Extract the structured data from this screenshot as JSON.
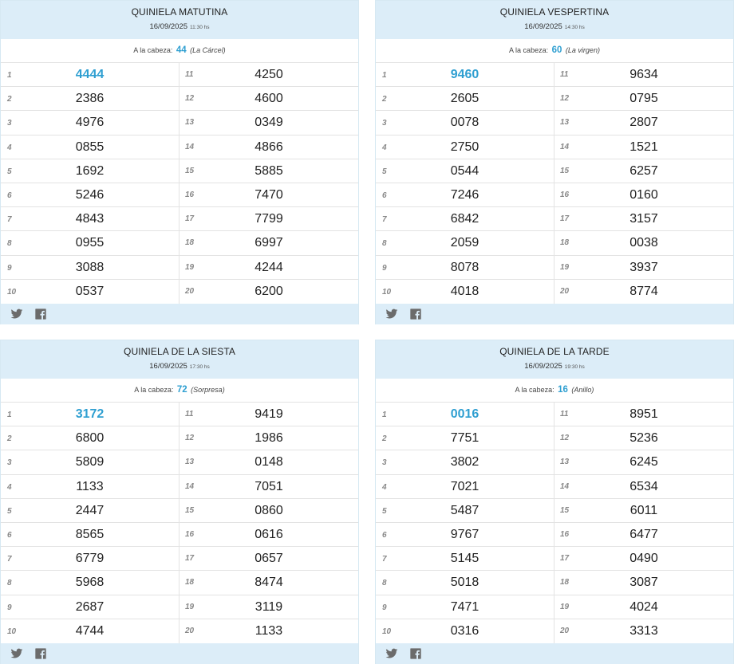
{
  "cards": [
    {
      "title": "QUINIELA MATUTINA",
      "date": "16/09/2025",
      "time": "11:30 hs",
      "cabeza_label": "A la cabeza:",
      "cabeza_number": "44",
      "cabeza_name": "(La Cárcel)",
      "left": [
        {
          "pos": "1",
          "num": "4444"
        },
        {
          "pos": "2",
          "num": "2386"
        },
        {
          "pos": "3",
          "num": "4976"
        },
        {
          "pos": "4",
          "num": "0855"
        },
        {
          "pos": "5",
          "num": "1692"
        },
        {
          "pos": "6",
          "num": "5246"
        },
        {
          "pos": "7",
          "num": "4843"
        },
        {
          "pos": "8",
          "num": "0955"
        },
        {
          "pos": "9",
          "num": "3088"
        },
        {
          "pos": "10",
          "num": "0537"
        }
      ],
      "right": [
        {
          "pos": "11",
          "num": "4250"
        },
        {
          "pos": "12",
          "num": "4600"
        },
        {
          "pos": "13",
          "num": "0349"
        },
        {
          "pos": "14",
          "num": "4866"
        },
        {
          "pos": "15",
          "num": "5885"
        },
        {
          "pos": "16",
          "num": "7470"
        },
        {
          "pos": "17",
          "num": "7799"
        },
        {
          "pos": "18",
          "num": "6997"
        },
        {
          "pos": "19",
          "num": "4244"
        },
        {
          "pos": "20",
          "num": "6200"
        }
      ]
    },
    {
      "title": "QUINIELA VESPERTINA",
      "date": "16/09/2025",
      "time": "14:30 hs",
      "cabeza_label": "A la cabeza:",
      "cabeza_number": "60",
      "cabeza_name": "(La virgen)",
      "left": [
        {
          "pos": "1",
          "num": "9460"
        },
        {
          "pos": "2",
          "num": "2605"
        },
        {
          "pos": "3",
          "num": "0078"
        },
        {
          "pos": "4",
          "num": "2750"
        },
        {
          "pos": "5",
          "num": "0544"
        },
        {
          "pos": "6",
          "num": "7246"
        },
        {
          "pos": "7",
          "num": "6842"
        },
        {
          "pos": "8",
          "num": "2059"
        },
        {
          "pos": "9",
          "num": "8078"
        },
        {
          "pos": "10",
          "num": "4018"
        }
      ],
      "right": [
        {
          "pos": "11",
          "num": "9634"
        },
        {
          "pos": "12",
          "num": "0795"
        },
        {
          "pos": "13",
          "num": "2807"
        },
        {
          "pos": "14",
          "num": "1521"
        },
        {
          "pos": "15",
          "num": "6257"
        },
        {
          "pos": "16",
          "num": "0160"
        },
        {
          "pos": "17",
          "num": "3157"
        },
        {
          "pos": "18",
          "num": "0038"
        },
        {
          "pos": "19",
          "num": "3937"
        },
        {
          "pos": "20",
          "num": "8774"
        }
      ]
    },
    {
      "title": "QUINIELA DE LA SIESTA",
      "date": "16/09/2025",
      "time": "17:30 hs",
      "cabeza_label": "A la cabeza:",
      "cabeza_number": "72",
      "cabeza_name": "(Sorpresa)",
      "left": [
        {
          "pos": "1",
          "num": "3172"
        },
        {
          "pos": "2",
          "num": "6800"
        },
        {
          "pos": "3",
          "num": "5809"
        },
        {
          "pos": "4",
          "num": "1133"
        },
        {
          "pos": "5",
          "num": "2447"
        },
        {
          "pos": "6",
          "num": "8565"
        },
        {
          "pos": "7",
          "num": "6779"
        },
        {
          "pos": "8",
          "num": "5968"
        },
        {
          "pos": "9",
          "num": "2687"
        },
        {
          "pos": "10",
          "num": "4744"
        }
      ],
      "right": [
        {
          "pos": "11",
          "num": "9419"
        },
        {
          "pos": "12",
          "num": "1986"
        },
        {
          "pos": "13",
          "num": "0148"
        },
        {
          "pos": "14",
          "num": "7051"
        },
        {
          "pos": "15",
          "num": "0860"
        },
        {
          "pos": "16",
          "num": "0616"
        },
        {
          "pos": "17",
          "num": "0657"
        },
        {
          "pos": "18",
          "num": "8474"
        },
        {
          "pos": "19",
          "num": "3119"
        },
        {
          "pos": "20",
          "num": "1133"
        }
      ]
    },
    {
      "title": "QUINIELA DE LA TARDE",
      "date": "16/09/2025",
      "time": "19:30 hs",
      "cabeza_label": "A la cabeza:",
      "cabeza_number": "16",
      "cabeza_name": "(Anillo)",
      "left": [
        {
          "pos": "1",
          "num": "0016"
        },
        {
          "pos": "2",
          "num": "7751"
        },
        {
          "pos": "3",
          "num": "3802"
        },
        {
          "pos": "4",
          "num": "7021"
        },
        {
          "pos": "5",
          "num": "5487"
        },
        {
          "pos": "6",
          "num": "9767"
        },
        {
          "pos": "7",
          "num": "5145"
        },
        {
          "pos": "8",
          "num": "5018"
        },
        {
          "pos": "9",
          "num": "7471"
        },
        {
          "pos": "10",
          "num": "0316"
        }
      ],
      "right": [
        {
          "pos": "11",
          "num": "8951"
        },
        {
          "pos": "12",
          "num": "5236"
        },
        {
          "pos": "13",
          "num": "6245"
        },
        {
          "pos": "14",
          "num": "6534"
        },
        {
          "pos": "15",
          "num": "6011"
        },
        {
          "pos": "16",
          "num": "6477"
        },
        {
          "pos": "17",
          "num": "0490"
        },
        {
          "pos": "18",
          "num": "3087"
        },
        {
          "pos": "19",
          "num": "4024"
        },
        {
          "pos": "20",
          "num": "3313"
        }
      ]
    }
  ],
  "footer_icons": [
    "twitter-icon",
    "facebook-icon"
  ],
  "colors": {
    "accent": "#2f9fd1",
    "header_bg": "#dcedf8",
    "position_text": "#888888"
  }
}
